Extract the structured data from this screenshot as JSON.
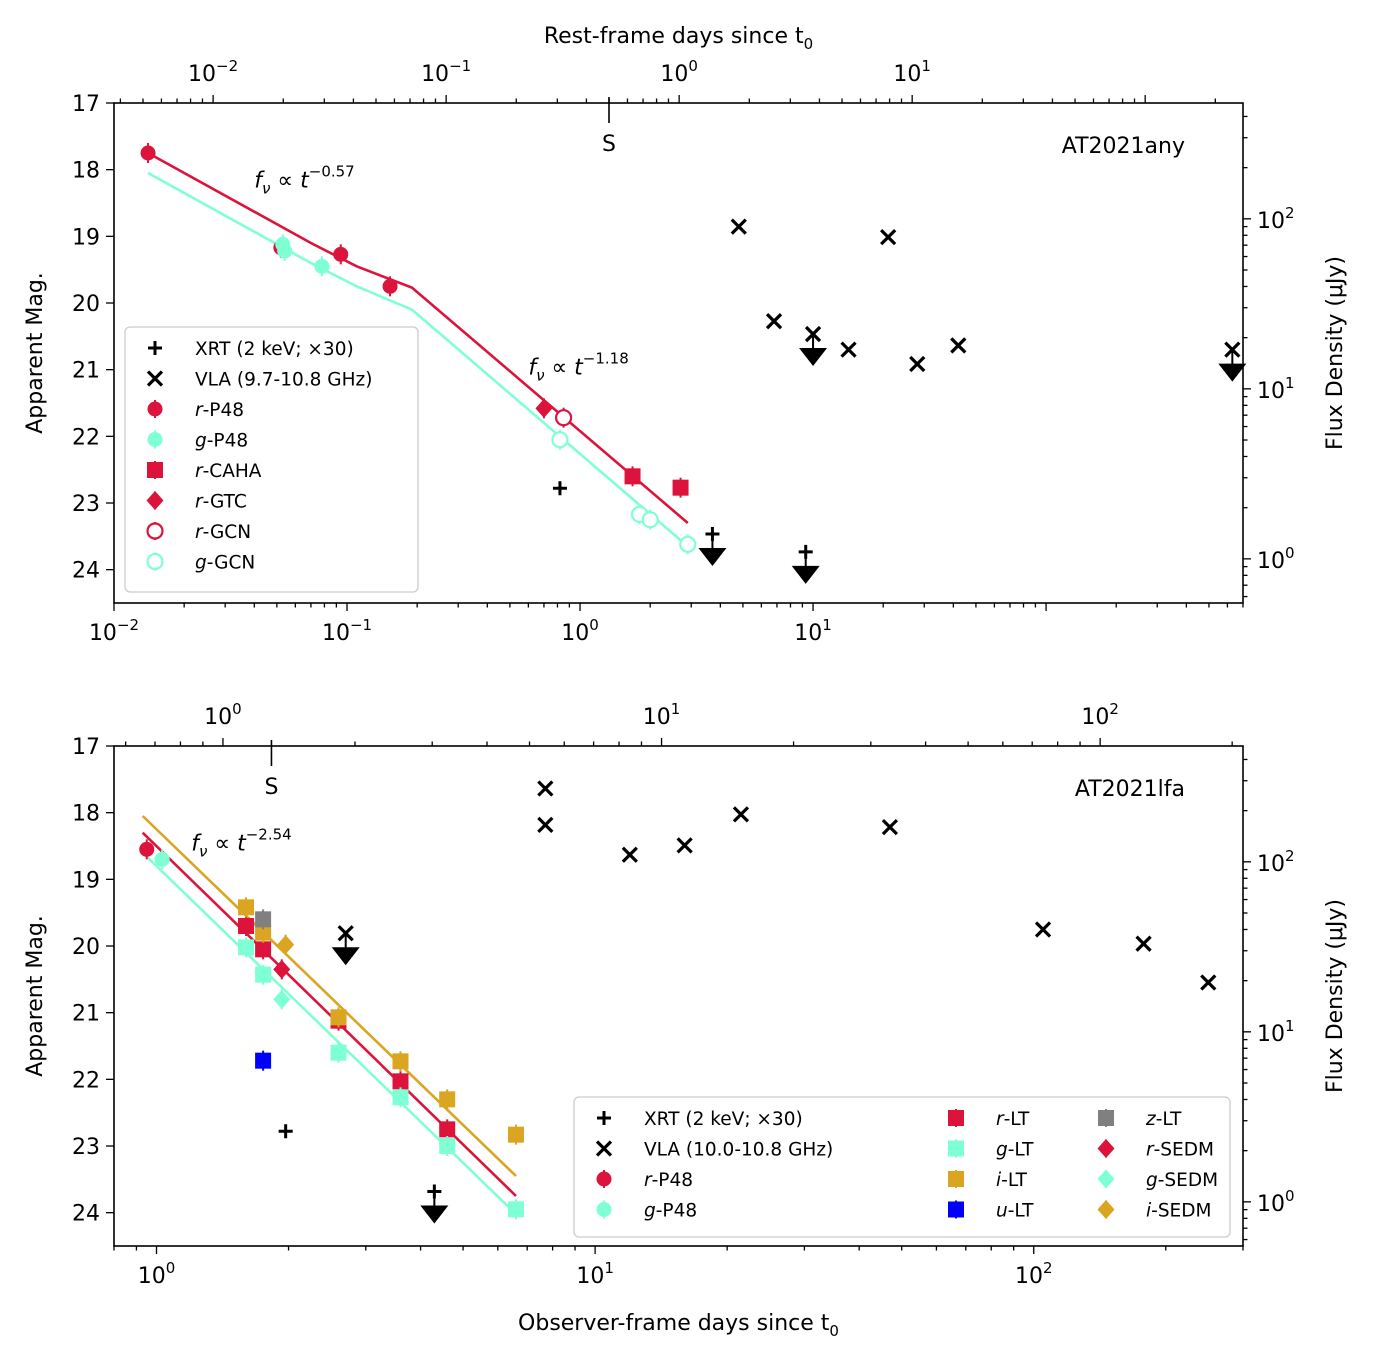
{
  "colors": {
    "r": "#dc143c",
    "g": "#7fffd4",
    "i": "#daa520",
    "u": "#0000ff",
    "z": "#808080",
    "black": "#000000"
  },
  "chart_data": [
    {
      "type": "scatter",
      "panel": "top",
      "title": "AT2021any",
      "xlabel_top": "Rest-frame days since t",
      "xlabel_top_sub": "0",
      "xlabel_bottom": "",
      "ylabel_left": "Apparent Mag.",
      "ylabel_right": "Flux Density (μJy)",
      "xlim": [
        0.01,
        700
      ],
      "xlim_top": [
        0.003755,
        262.9
      ],
      "ylim": [
        17,
        24.5
      ],
      "flux_lim": [
        0.55,
        480
      ],
      "xticks_bottom": [
        {
          "v": 0.01,
          "b": "10",
          "e": "−2"
        },
        {
          "v": 0.1,
          "b": "10",
          "e": "−1"
        },
        {
          "v": 1,
          "b": "10",
          "e": "0"
        },
        {
          "v": 10,
          "b": "10",
          "e": "1"
        }
      ],
      "xticks_top": [
        {
          "v": 0.01,
          "b": "10",
          "e": "−2"
        },
        {
          "v": 0.1,
          "b": "10",
          "e": "−1"
        },
        {
          "v": 1,
          "b": "10",
          "e": "0"
        },
        {
          "v": 10,
          "b": "10",
          "e": "1"
        }
      ],
      "yticks": [
        17,
        18,
        19,
        20,
        21,
        22,
        23,
        24
      ],
      "flux_ticks": [
        {
          "v": 1,
          "b": "10",
          "e": "0"
        },
        {
          "v": 10,
          "b": "10",
          "e": "1"
        },
        {
          "v": 100,
          "b": "10",
          "e": "2"
        }
      ],
      "s_marker": {
        "x": 0.5,
        "label": "S"
      },
      "annotations": [
        {
          "x": 0.04,
          "y": 18.15,
          "base": "f",
          "sub": "ν",
          "mid": " ∝ t",
          "exp": "−0.57"
        },
        {
          "x": 0.6,
          "y": 20.95,
          "base": "f",
          "sub": "ν",
          "mid": " ∝ t",
          "exp": "−1.18"
        }
      ],
      "series": [
        {
          "name": "r-P48",
          "band": "r",
          "marker": "circle",
          "color": "#dc143c",
          "filled": true,
          "x": [
            0.014,
            0.052,
            0.094,
            0.153
          ],
          "y": [
            17.75,
            19.17,
            19.27,
            19.75
          ]
        },
        {
          "name": "g-P48",
          "band": "g",
          "marker": "circle",
          "color": "#7fffd4",
          "filled": true,
          "x": [
            0.053,
            0.054,
            0.078
          ],
          "y": [
            19.12,
            19.22,
            19.45
          ]
        },
        {
          "name": "r-CAHA",
          "band": "r",
          "marker": "square",
          "color": "#dc143c",
          "filled": true,
          "x": [
            1.68,
            2.7
          ],
          "y": [
            22.6,
            22.77
          ]
        },
        {
          "name": "r-GTC",
          "band": "r",
          "marker": "diamond",
          "color": "#dc143c",
          "filled": true,
          "x": [
            0.7
          ],
          "y": [
            21.58
          ]
        },
        {
          "name": "r-GCN",
          "band": "r",
          "marker": "circle",
          "color": "#dc143c",
          "filled": false,
          "x": [
            0.85
          ],
          "y": [
            21.72
          ]
        },
        {
          "name": "g-GCN",
          "band": "g",
          "marker": "circle",
          "color": "#7fffd4",
          "filled": false,
          "x": [
            0.82,
            1.8,
            2.0,
            2.9
          ],
          "y": [
            22.05,
            23.17,
            23.25,
            23.62
          ]
        },
        {
          "name": "r-model",
          "band": "r",
          "marker": "line",
          "color": "#dc143c",
          "x": [
            0.014,
            0.07,
            0.11,
            0.19,
            2.9
          ],
          "y": [
            17.75,
            19.1,
            19.45,
            19.77,
            23.3
          ]
        },
        {
          "name": "g-model",
          "band": "g",
          "marker": "line",
          "color": "#7fffd4",
          "x": [
            0.014,
            0.07,
            0.11,
            0.19,
            2.9
          ],
          "y": [
            18.05,
            19.4,
            19.75,
            20.1,
            23.65
          ]
        }
      ],
      "xrt": {
        "name": "XRT (2 keV; ×30)",
        "det": [
          {
            "x": 0.82,
            "f": 2.6
          }
        ],
        "ul": [
          {
            "x": 3.7,
            "f": 1.4
          },
          {
            "x": 9.3,
            "f": 1.1
          }
        ]
      },
      "vla": {
        "name": "VLA (9.7-10.8 GHz)",
        "det": [
          {
            "x": 4.8,
            "f": 90
          },
          {
            "x": 6.8,
            "f": 25
          },
          {
            "x": 10.0,
            "f": 21
          },
          {
            "x": 14.2,
            "f": 17
          },
          {
            "x": 21.0,
            "f": 78
          },
          {
            "x": 28.0,
            "f": 14
          },
          {
            "x": 42.0,
            "f": 18
          },
          {
            "x": 630,
            "f": 17
          }
        ],
        "ul": [
          {
            "x": 10.0,
            "f": 21
          },
          {
            "x": 630,
            "f": 17
          }
        ]
      },
      "legend": [
        {
          "label": "XRT (2 keV; ×30)",
          "marker": "plus",
          "color": "#000000"
        },
        {
          "label": "VLA (9.7-10.8 GHz)",
          "marker": "cross",
          "color": "#000000"
        },
        {
          "label": "r-P48",
          "band": "r",
          "rest": "-P48",
          "marker": "circle",
          "color": "#dc143c",
          "filled": true
        },
        {
          "label": "g-P48",
          "band": "g",
          "rest": "-P48",
          "marker": "circle",
          "color": "#7fffd4",
          "filled": true
        },
        {
          "label": "r-CAHA",
          "band": "r",
          "rest": "-CAHA",
          "marker": "square",
          "color": "#dc143c",
          "filled": true
        },
        {
          "label": "r-GTC",
          "band": "r",
          "rest": "-GTC",
          "marker": "diamond",
          "color": "#dc143c",
          "filled": true
        },
        {
          "label": "r-GCN",
          "band": "r",
          "rest": "-GCN",
          "marker": "circle",
          "color": "#dc143c",
          "filled": false
        },
        {
          "label": "g-GCN",
          "band": "g",
          "rest": "-GCN",
          "marker": "circle",
          "color": "#7fffd4",
          "filled": false
        }
      ]
    },
    {
      "type": "scatter",
      "panel": "bottom",
      "title": "AT2021lfa",
      "xlabel_top": "",
      "xlabel_top_sub": "",
      "xlabel_bottom": "Observer-frame days since t",
      "xlabel_bottom_sub": "0",
      "ylabel_left": "Apparent Mag.",
      "ylabel_right": "Flux Density (μJy)",
      "xlim": [
        0.8,
        300
      ],
      "xlim_top": [
        0.5644,
        211.7
      ],
      "ylim": [
        17,
        24.5
      ],
      "flux_lim": [
        0.55,
        480
      ],
      "xticks_bottom": [
        {
          "v": 1,
          "b": "10",
          "e": "0"
        },
        {
          "v": 10,
          "b": "10",
          "e": "1"
        },
        {
          "v": 100,
          "b": "10",
          "e": "2"
        }
      ],
      "xticks_top": [
        {
          "v": 1,
          "b": "10",
          "e": "0"
        },
        {
          "v": 10,
          "b": "10",
          "e": "1"
        },
        {
          "v": 100,
          "b": "10",
          "e": "2"
        }
      ],
      "yticks": [
        17,
        18,
        19,
        20,
        21,
        22,
        23,
        24
      ],
      "flux_ticks": [
        {
          "v": 1,
          "b": "10",
          "e": "0"
        },
        {
          "v": 10,
          "b": "10",
          "e": "1"
        },
        {
          "v": 100,
          "b": "10",
          "e": "2"
        }
      ],
      "s_marker": {
        "x": 1.29,
        "label": "S"
      },
      "annotations": [
        {
          "x": 1.2,
          "y": 18.45,
          "base": "f",
          "sub": "ν",
          "mid": " ∝ t",
          "exp": "−2.54"
        }
      ],
      "series": [
        {
          "name": "r-P48",
          "band": "r",
          "marker": "circle",
          "color": "#dc143c",
          "filled": true,
          "x": [
            0.95
          ],
          "y": [
            18.55
          ]
        },
        {
          "name": "g-P48",
          "band": "g",
          "marker": "circle",
          "color": "#7fffd4",
          "filled": true,
          "x": [
            1.03
          ],
          "y": [
            18.7
          ]
        },
        {
          "name": "r-LT",
          "band": "r",
          "marker": "square",
          "color": "#dc143c",
          "filled": true,
          "x": [
            1.6,
            1.75,
            2.6,
            3.6,
            4.6
          ],
          "y": [
            19.7,
            20.05,
            21.12,
            22.03,
            22.75
          ]
        },
        {
          "name": "g-LT",
          "band": "g",
          "marker": "square",
          "color": "#7fffd4",
          "filled": true,
          "x": [
            1.6,
            1.75,
            2.6,
            3.6,
            4.6,
            6.6
          ],
          "y": [
            20.02,
            20.43,
            21.6,
            22.27,
            23.0,
            23.95
          ]
        },
        {
          "name": "i-LT",
          "band": "i",
          "marker": "square",
          "color": "#daa520",
          "filled": true,
          "x": [
            1.6,
            1.75,
            2.6,
            3.6,
            4.6,
            6.6
          ],
          "y": [
            19.42,
            19.8,
            21.07,
            21.73,
            22.3,
            22.83
          ]
        },
        {
          "name": "u-LT",
          "band": "u",
          "marker": "square",
          "color": "#0000ff",
          "filled": true,
          "x": [
            1.75
          ],
          "y": [
            21.72
          ]
        },
        {
          "name": "z-LT",
          "band": "z",
          "marker": "square",
          "color": "#808080",
          "filled": true,
          "x": [
            1.75
          ],
          "y": [
            19.6
          ]
        },
        {
          "name": "r-SEDM",
          "band": "r",
          "marker": "diamond",
          "color": "#dc143c",
          "filled": true,
          "x": [
            1.93
          ],
          "y": [
            20.35
          ]
        },
        {
          "name": "g-SEDM",
          "band": "g",
          "marker": "diamond",
          "color": "#7fffd4",
          "filled": true,
          "x": [
            1.93
          ],
          "y": [
            20.8
          ]
        },
        {
          "name": "i-SEDM",
          "band": "i",
          "marker": "diamond",
          "color": "#daa520",
          "filled": true,
          "x": [
            1.97
          ],
          "y": [
            19.98
          ]
        },
        {
          "name": "r-model",
          "band": "r",
          "marker": "line",
          "color": "#dc143c",
          "x": [
            0.93,
            6.6
          ],
          "y": [
            18.3,
            23.75
          ]
        },
        {
          "name": "g-model",
          "band": "g",
          "marker": "line",
          "color": "#7fffd4",
          "x": [
            0.93,
            6.6
          ],
          "y": [
            18.6,
            24.02
          ]
        },
        {
          "name": "i-model",
          "band": "i",
          "marker": "line",
          "color": "#daa520",
          "x": [
            0.93,
            6.6
          ],
          "y": [
            18.05,
            23.45
          ]
        }
      ],
      "xrt": {
        "name": "XRT (2 keV; ×30)",
        "det": [
          {
            "x": 1.97,
            "f": 2.6
          }
        ],
        "ul": [
          {
            "x": 4.3,
            "f": 1.15
          }
        ]
      },
      "vla": {
        "name": "VLA (10.0-10.8 GHz)",
        "det": [
          {
            "x": 2.7,
            "f": 38
          },
          {
            "x": 7.7,
            "f": 270
          },
          {
            "x": 7.7,
            "f": 165
          },
          {
            "x": 12.0,
            "f": 110
          },
          {
            "x": 16.0,
            "f": 125
          },
          {
            "x": 21.5,
            "f": 190
          },
          {
            "x": 47.0,
            "f": 160
          },
          {
            "x": 105.0,
            "f": 40
          },
          {
            "x": 178.0,
            "f": 33
          },
          {
            "x": 250.0,
            "f": 19.5
          }
        ],
        "ul": [
          {
            "x": 2.7,
            "f": 38
          }
        ]
      },
      "legend": [
        {
          "label": "XRT (2 keV; ×30)",
          "marker": "plus",
          "color": "#000000"
        },
        {
          "label": "VLA (10.0-10.8 GHz)",
          "marker": "cross",
          "color": "#000000"
        },
        {
          "label": "r-P48",
          "band": "r",
          "rest": "-P48",
          "marker": "circle",
          "color": "#dc143c",
          "filled": true
        },
        {
          "label": "g-P48",
          "band": "g",
          "rest": "-P48",
          "marker": "circle",
          "color": "#7fffd4",
          "filled": true
        },
        {
          "label": "r-LT",
          "band": "r",
          "rest": "-LT",
          "marker": "square",
          "color": "#dc143c",
          "filled": true
        },
        {
          "label": "g-LT",
          "band": "g",
          "rest": "-LT",
          "marker": "square",
          "color": "#7fffd4",
          "filled": true
        },
        {
          "label": "i-LT",
          "band": "i",
          "rest": "-LT",
          "marker": "square",
          "color": "#daa520",
          "filled": true
        },
        {
          "label": "u-LT",
          "band": "u",
          "rest": "-LT",
          "marker": "square",
          "color": "#0000ff",
          "filled": true
        },
        {
          "label": "z-LT",
          "band": "z",
          "rest": "-LT",
          "marker": "square",
          "color": "#808080",
          "filled": true
        },
        {
          "label": "r-SEDM",
          "band": "r",
          "rest": "-SEDM",
          "marker": "diamond",
          "color": "#dc143c",
          "filled": true
        },
        {
          "label": "g-SEDM",
          "band": "g",
          "rest": "-SEDM",
          "marker": "diamond",
          "color": "#7fffd4",
          "filled": true
        },
        {
          "label": "i-SEDM",
          "band": "i",
          "rest": "-SEDM",
          "marker": "diamond",
          "color": "#daa520",
          "filled": true
        }
      ]
    }
  ]
}
